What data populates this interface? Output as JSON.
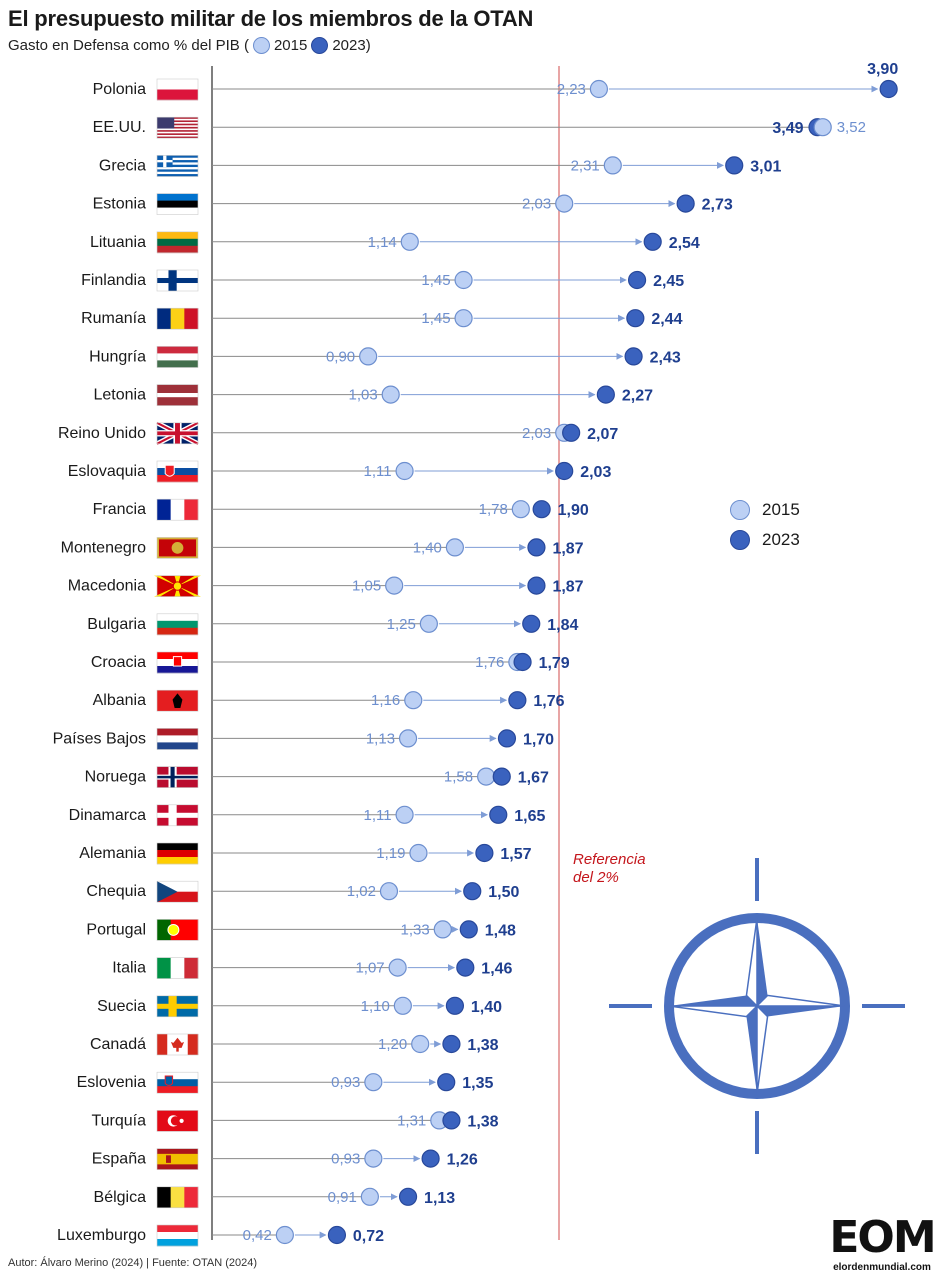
{
  "title": "El presupuesto militar de los miembros de la OTAN",
  "subtitle": {
    "prefix": "Gasto en Defensa como % del PIB (",
    "label_2015": "2015",
    "label_2023": "2023)"
  },
  "legend": {
    "label_2015": "2015",
    "label_2023": "2023"
  },
  "reference_note": {
    "line1": "Referencia",
    "line2": "del 2%"
  },
  "footer": "Autor: Álvaro Merino (2024) | Fuente: OTAN (2024)",
  "logo": {
    "main": "EOM",
    "sub": "elordenmundial.com"
  },
  "colors": {
    "c2015_fill": "#bcd0f4",
    "c2015_stroke": "#6d8fcf",
    "c2023_fill": "#3a62be",
    "c2023_stroke": "#28489a",
    "label2015": "#6d8fcf",
    "label2023": "#1f3f8f",
    "reference": "#e8a5a5",
    "otan": "#4a6fbf"
  },
  "chart_data": {
    "type": "dumbbell",
    "title": "El presupuesto militar de los miembros de la OTAN",
    "xlabel": "Gasto en Defensa como % del PIB",
    "xlim": [
      0,
      4
    ],
    "reference_value": 2.0,
    "series_names": [
      "2015",
      "2023"
    ],
    "rows": [
      {
        "country": "Polonia",
        "flag": "poland",
        "v2015": 2.23,
        "l2015": "2,23",
        "v2023": 3.9,
        "l2023": "3,90"
      },
      {
        "country": "EE.UU.",
        "flag": "usa",
        "v2015": 3.52,
        "l2015": "3,52",
        "v2023": 3.49,
        "l2023": "3,49"
      },
      {
        "country": "Grecia",
        "flag": "greece",
        "v2015": 2.31,
        "l2015": "2,31",
        "v2023": 3.01,
        "l2023": "3,01"
      },
      {
        "country": "Estonia",
        "flag": "estonia",
        "v2015": 2.03,
        "l2015": "2,03",
        "v2023": 2.73,
        "l2023": "2,73"
      },
      {
        "country": "Lituania",
        "flag": "lithuania",
        "v2015": 1.14,
        "l2015": "1,14",
        "v2023": 2.54,
        "l2023": "2,54"
      },
      {
        "country": "Finlandia",
        "flag": "finland",
        "v2015": 1.45,
        "l2015": "1,45",
        "v2023": 2.45,
        "l2023": "2,45"
      },
      {
        "country": "Rumanía",
        "flag": "romania",
        "v2015": 1.45,
        "l2015": "1,45",
        "v2023": 2.44,
        "l2023": "2,44"
      },
      {
        "country": "Hungría",
        "flag": "hungary",
        "v2015": 0.9,
        "l2015": "0,90",
        "v2023": 2.43,
        "l2023": "2,43"
      },
      {
        "country": "Letonia",
        "flag": "latvia",
        "v2015": 1.03,
        "l2015": "1,03",
        "v2023": 2.27,
        "l2023": "2,27"
      },
      {
        "country": "Reino Unido",
        "flag": "uk",
        "v2015": 2.03,
        "l2015": "2,03",
        "v2023": 2.07,
        "l2023": "2,07"
      },
      {
        "country": "Eslovaquia",
        "flag": "slovakia",
        "v2015": 1.11,
        "l2015": "1,11",
        "v2023": 2.03,
        "l2023": "2,03"
      },
      {
        "country": "Francia",
        "flag": "france",
        "v2015": 1.78,
        "l2015": "1,78",
        "v2023": 1.9,
        "l2023": "1,90"
      },
      {
        "country": "Montenegro",
        "flag": "montenegro",
        "v2015": 1.4,
        "l2015": "1,40",
        "v2023": 1.87,
        "l2023": "1,87"
      },
      {
        "country": "Macedonia",
        "flag": "macedonia",
        "v2015": 1.05,
        "l2015": "1,05",
        "v2023": 1.87,
        "l2023": "1,87"
      },
      {
        "country": "Bulgaria",
        "flag": "bulgaria",
        "v2015": 1.25,
        "l2015": "1,25",
        "v2023": 1.84,
        "l2023": "1,84"
      },
      {
        "country": "Croacia",
        "flag": "croatia",
        "v2015": 1.76,
        "l2015": "1,76",
        "v2023": 1.79,
        "l2023": "1,79"
      },
      {
        "country": "Albania",
        "flag": "albania",
        "v2015": 1.16,
        "l2015": "1,16",
        "v2023": 1.76,
        "l2023": "1,76"
      },
      {
        "country": "Países Bajos",
        "flag": "netherlands",
        "v2015": 1.13,
        "l2015": "1,13",
        "v2023": 1.7,
        "l2023": "1,70"
      },
      {
        "country": "Noruega",
        "flag": "norway",
        "v2015": 1.58,
        "l2015": "1,58",
        "v2023": 1.67,
        "l2023": "1,67"
      },
      {
        "country": "Dinamarca",
        "flag": "denmark",
        "v2015": 1.11,
        "l2015": "1,11",
        "v2023": 1.65,
        "l2023": "1,65"
      },
      {
        "country": "Alemania",
        "flag": "germany",
        "v2015": 1.19,
        "l2015": "1,19",
        "v2023": 1.57,
        "l2023": "1,57"
      },
      {
        "country": "Chequia",
        "flag": "czechia",
        "v2015": 1.02,
        "l2015": "1,02",
        "v2023": 1.5,
        "l2023": "1,50"
      },
      {
        "country": "Portugal",
        "flag": "portugal",
        "v2015": 1.33,
        "l2015": "1,33",
        "v2023": 1.48,
        "l2023": "1,48"
      },
      {
        "country": "Italia",
        "flag": "italy",
        "v2015": 1.07,
        "l2015": "1,07",
        "v2023": 1.46,
        "l2023": "1,46"
      },
      {
        "country": "Suecia",
        "flag": "sweden",
        "v2015": 1.1,
        "l2015": "1,10",
        "v2023": 1.4,
        "l2023": "1,40"
      },
      {
        "country": "Canadá",
        "flag": "canada",
        "v2015": 1.2,
        "l2015": "1,20",
        "v2023": 1.38,
        "l2023": "1,38"
      },
      {
        "country": "Eslovenia",
        "flag": "slovenia",
        "v2015": 0.93,
        "l2015": "0,93",
        "v2023": 1.35,
        "l2023": "1,35"
      },
      {
        "country": "Turquía",
        "flag": "turkey",
        "v2015": 1.31,
        "l2015": "1,31",
        "v2023": 1.38,
        "l2023": "1,38"
      },
      {
        "country": "España",
        "flag": "spain",
        "v2015": 0.93,
        "l2015": "0,93",
        "v2023": 1.26,
        "l2023": "1,26"
      },
      {
        "country": "Bélgica",
        "flag": "belgium",
        "v2015": 0.91,
        "l2015": "0,91",
        "v2023": 1.13,
        "l2023": "1,13"
      },
      {
        "country": "Luxemburgo",
        "flag": "luxembourg",
        "v2015": 0.42,
        "l2015": "0,42",
        "v2023": 0.72,
        "l2023": "0,72"
      }
    ]
  }
}
